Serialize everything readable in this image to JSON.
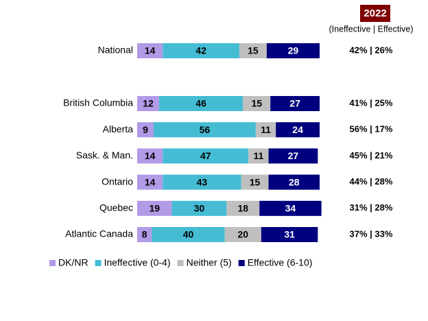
{
  "chart_data": {
    "type": "bar",
    "orientation": "horizontal",
    "stacked": true,
    "header": "2022",
    "subheader": "(Ineffective | Effective)",
    "categories": [
      "National",
      "British Columbia",
      "Alberta",
      "Sask. & Man.",
      "Ontario",
      "Quebec",
      "Atlantic Canada"
    ],
    "series": [
      {
        "name": "DK/NR",
        "color": "#b19ae6",
        "values": [
          14,
          12,
          9,
          14,
          14,
          19,
          8
        ]
      },
      {
        "name": "Ineffective (0-4)",
        "color": "#45bcd4",
        "values": [
          42,
          46,
          56,
          47,
          43,
          30,
          40
        ]
      },
      {
        "name": "Neither (5)",
        "color": "#bfbfbf",
        "values": [
          15,
          15,
          11,
          11,
          15,
          18,
          20
        ]
      },
      {
        "name": "Effective (6-10)",
        "color": "#00007f",
        "values": [
          29,
          27,
          24,
          27,
          28,
          34,
          31
        ]
      }
    ],
    "summary": [
      "42% | 26%",
      "41% | 25%",
      "56% | 17%",
      "45% | 21%",
      "44% | 28%",
      "31% | 28%",
      "37% | 33%"
    ],
    "legend": "bottom"
  }
}
